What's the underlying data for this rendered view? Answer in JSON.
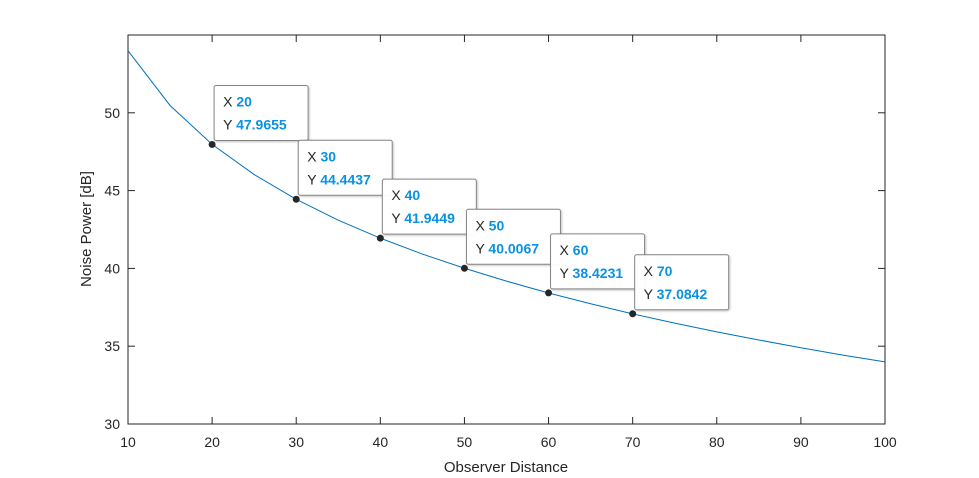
{
  "chart_data": {
    "type": "line",
    "title": "",
    "xlabel": "Observer Distance",
    "ylabel": "Noise Power [dB]",
    "xlim": [
      10,
      100
    ],
    "ylim": [
      30,
      55
    ],
    "xticks": [
      10,
      20,
      30,
      40,
      50,
      60,
      70,
      80,
      90,
      100
    ],
    "yticks": [
      30,
      35,
      40,
      45,
      50
    ],
    "grid": false,
    "line_color": "#0072bd",
    "series": [
      {
        "x": [
          10,
          15,
          20,
          25,
          30,
          35,
          40,
          45,
          50,
          55,
          60,
          65,
          70,
          75,
          80,
          85,
          90,
          95,
          100
        ],
        "y": [
          53.99,
          50.47,
          47.97,
          46.03,
          44.44,
          43.1,
          41.94,
          40.92,
          40.01,
          39.18,
          38.42,
          37.73,
          37.08,
          36.48,
          35.92,
          35.4,
          34.9,
          34.43,
          33.99
        ]
      }
    ],
    "datatips": [
      {
        "x_label": "X",
        "y_label": "Y",
        "x": "20",
        "y": "47.9655"
      },
      {
        "x_label": "X",
        "y_label": "Y",
        "x": "30",
        "y": "44.4437"
      },
      {
        "x_label": "X",
        "y_label": "Y",
        "x": "40",
        "y": "41.9449"
      },
      {
        "x_label": "X",
        "y_label": "Y",
        "x": "50",
        "y": "40.0067"
      },
      {
        "x_label": "X",
        "y_label": "Y",
        "x": "60",
        "y": "38.4231"
      },
      {
        "x_label": "X",
        "y_label": "Y",
        "x": "70",
        "y": "37.0842"
      }
    ]
  }
}
